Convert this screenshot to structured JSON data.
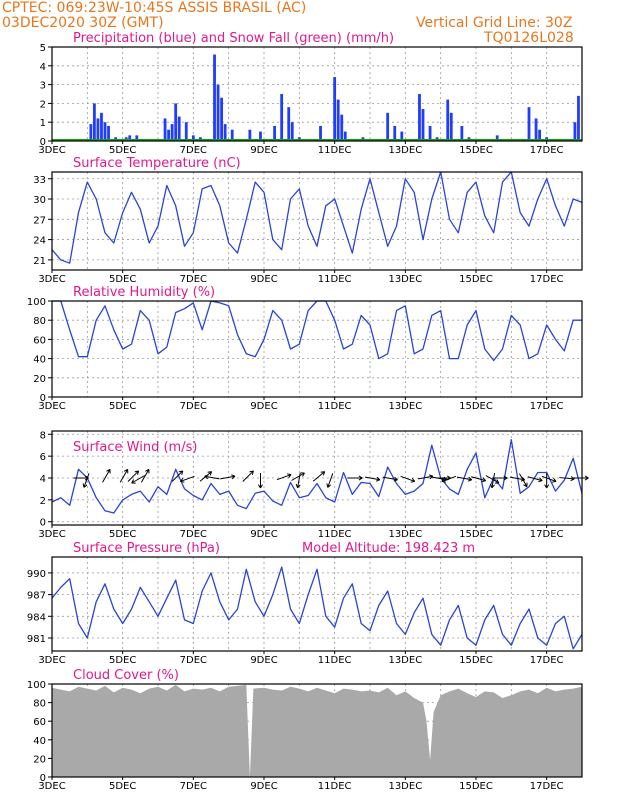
{
  "header": {
    "line1": "CPTEC:   069:23W-10:45S   ASSIS BRASIL (AC)",
    "line2_left": "03DEC2020 30Z (GMT)",
    "line2_right": "Vertical Grid Line: 30Z",
    "code": "TQ0126L028"
  },
  "colors": {
    "header": "#e8761c",
    "title": "#e0198c",
    "precip": "#1f3cff",
    "snow": "#12a012",
    "line": "#2a44d8",
    "cloud": "#a9a9a9",
    "arrow": "#000000"
  },
  "x_axis": {
    "tick_labels": [
      "3DEC",
      "5DEC",
      "7DEC",
      "9DEC",
      "11DEC",
      "13DEC",
      "15DEC",
      "17DEC"
    ],
    "start_day": 3,
    "end_day": 18
  },
  "chart_data": [
    {
      "type": "bar",
      "title": "Precipitation (blue) and Snow Fall (green) (mm/h)",
      "ylim": [
        0,
        5
      ],
      "yticks": [
        0,
        1,
        2,
        3,
        4,
        5
      ],
      "series": [
        {
          "name": "Precipitation",
          "color": "#1f3cff",
          "points": [
            [
              4.1,
              0.9
            ],
            [
              4.2,
              2.0
            ],
            [
              4.3,
              1.2
            ],
            [
              4.4,
              1.5
            ],
            [
              4.5,
              1.0
            ],
            [
              4.6,
              0.8
            ],
            [
              4.8,
              0.2
            ],
            [
              5.1,
              0.2
            ],
            [
              5.2,
              0.3
            ],
            [
              5.4,
              0.3
            ],
            [
              5.5,
              0.1
            ],
            [
              6.2,
              1.2
            ],
            [
              6.3,
              0.6
            ],
            [
              6.4,
              0.9
            ],
            [
              6.5,
              2.0
            ],
            [
              6.6,
              1.3
            ],
            [
              6.8,
              1.0
            ],
            [
              7.0,
              0.3
            ],
            [
              7.2,
              0.2
            ],
            [
              7.6,
              4.6
            ],
            [
              7.7,
              3.0
            ],
            [
              7.8,
              2.3
            ],
            [
              7.9,
              0.9
            ],
            [
              8.1,
              0.6
            ],
            [
              8.3,
              0.1
            ],
            [
              8.6,
              0.6
            ],
            [
              8.9,
              0.5
            ],
            [
              9.3,
              0.8
            ],
            [
              9.5,
              2.5
            ],
            [
              9.7,
              1.8
            ],
            [
              9.8,
              1.0
            ],
            [
              10.0,
              0.2
            ],
            [
              10.6,
              0.8
            ],
            [
              11.0,
              3.4
            ],
            [
              11.1,
              2.2
            ],
            [
              11.2,
              1.4
            ],
            [
              11.3,
              0.5
            ],
            [
              11.8,
              0.2
            ],
            [
              12.5,
              1.5
            ],
            [
              12.7,
              0.8
            ],
            [
              12.9,
              0.5
            ],
            [
              13.1,
              0.1
            ],
            [
              13.4,
              2.5
            ],
            [
              13.5,
              1.7
            ],
            [
              13.7,
              0.8
            ],
            [
              13.9,
              0.2
            ],
            [
              14.1,
              0.1
            ],
            [
              14.2,
              2.2
            ],
            [
              14.3,
              1.5
            ],
            [
              14.6,
              0.8
            ],
            [
              14.8,
              0.2
            ],
            [
              15.2,
              0.1
            ],
            [
              15.6,
              0.3
            ],
            [
              16.0,
              0.1
            ],
            [
              16.5,
              1.8
            ],
            [
              16.7,
              1.2
            ],
            [
              16.8,
              0.6
            ],
            [
              17.0,
              0.2
            ],
            [
              17.2,
              0.1
            ],
            [
              17.8,
              1.0
            ],
            [
              17.9,
              2.4
            ]
          ]
        },
        {
          "name": "Snow Fall",
          "color": "#12a012",
          "points": [
            [
              3.0,
              0.0
            ],
            [
              18.0,
              0.0
            ]
          ]
        }
      ]
    },
    {
      "type": "line",
      "title": "Surface Temperature (nC)",
      "ylim": [
        19.5,
        34
      ],
      "yticks": [
        21,
        24,
        27,
        30,
        33
      ],
      "x": [
        3.0,
        3.25,
        3.5,
        3.75,
        4.0,
        4.25,
        4.5,
        4.75,
        5.0,
        5.25,
        5.5,
        5.75,
        6.0,
        6.25,
        6.5,
        6.75,
        7.0,
        7.25,
        7.5,
        7.75,
        8.0,
        8.25,
        8.5,
        8.75,
        9.0,
        9.25,
        9.5,
        9.75,
        10.0,
        10.25,
        10.5,
        10.75,
        11.0,
        11.25,
        11.5,
        11.75,
        12.0,
        12.25,
        12.5,
        12.75,
        13.0,
        13.25,
        13.5,
        13.75,
        14.0,
        14.25,
        14.5,
        14.75,
        15.0,
        15.25,
        15.5,
        15.75,
        16.0,
        16.25,
        16.5,
        16.75,
        17.0,
        17.25,
        17.5,
        17.75,
        18.0
      ],
      "y": [
        22.5,
        21,
        20.5,
        28,
        32.5,
        30,
        25,
        23.5,
        28,
        31,
        28.5,
        23.5,
        26,
        32,
        29,
        23,
        25,
        31.5,
        32,
        29,
        23.5,
        22,
        27,
        32.5,
        31,
        24,
        22.5,
        30,
        31.5,
        26,
        23,
        29,
        30,
        26,
        22,
        28.5,
        33,
        28,
        23,
        26,
        33,
        31,
        24,
        30,
        34,
        27,
        25,
        31,
        32.5,
        27.5,
        25,
        32.5,
        34,
        28,
        26,
        30,
        33,
        29,
        26,
        30,
        29.5
      ]
    },
    {
      "type": "line",
      "title": "Relative Humidity (%)",
      "ylim": [
        0,
        100
      ],
      "yticks": [
        0,
        20,
        40,
        60,
        80,
        100
      ],
      "x": [
        3.0,
        3.25,
        3.5,
        3.75,
        4.0,
        4.25,
        4.5,
        4.75,
        5.0,
        5.25,
        5.5,
        5.75,
        6.0,
        6.25,
        6.5,
        6.75,
        7.0,
        7.25,
        7.5,
        7.75,
        8.0,
        8.25,
        8.5,
        8.75,
        9.0,
        9.25,
        9.5,
        9.75,
        10.0,
        10.25,
        10.5,
        10.75,
        11.0,
        11.25,
        11.5,
        11.75,
        12.0,
        12.25,
        12.5,
        12.75,
        13.0,
        13.25,
        13.5,
        13.75,
        14.0,
        14.25,
        14.5,
        14.75,
        15.0,
        15.25,
        15.5,
        15.75,
        16.0,
        16.25,
        16.5,
        16.75,
        17.0,
        17.25,
        17.5,
        17.75,
        18.0
      ],
      "y": [
        100,
        100,
        70,
        42,
        42,
        80,
        95,
        70,
        50,
        55,
        90,
        80,
        45,
        52,
        88,
        92,
        98,
        70,
        100,
        98,
        95,
        65,
        45,
        42,
        60,
        90,
        80,
        50,
        55,
        90,
        100,
        100,
        80,
        50,
        55,
        85,
        75,
        40,
        45,
        90,
        95,
        45,
        50,
        85,
        90,
        40,
        40,
        75,
        90,
        50,
        38,
        50,
        85,
        75,
        40,
        45,
        75,
        60,
        48,
        80,
        80
      ]
    },
    {
      "type": "line",
      "title": "Surface Wind (m/s)",
      "ylim": [
        -0.3,
        8.3
      ],
      "yticks": [
        0,
        2,
        4,
        6,
        8
      ],
      "x": [
        3.0,
        3.25,
        3.5,
        3.75,
        4.0,
        4.25,
        4.5,
        4.75,
        5.0,
        5.25,
        5.5,
        5.75,
        6.0,
        6.25,
        6.5,
        6.75,
        7.0,
        7.25,
        7.5,
        7.75,
        8.0,
        8.25,
        8.5,
        8.75,
        9.0,
        9.25,
        9.5,
        9.75,
        10.0,
        10.25,
        10.5,
        10.75,
        11.0,
        11.25,
        11.5,
        11.75,
        12.0,
        12.25,
        12.5,
        12.75,
        13.0,
        13.25,
        13.5,
        13.75,
        14.0,
        14.25,
        14.5,
        14.75,
        15.0,
        15.25,
        15.5,
        15.75,
        16.0,
        16.25,
        16.5,
        16.75,
        17.0,
        17.25,
        17.5,
        17.75,
        18.0
      ],
      "y": [
        1.8,
        2.2,
        1.5,
        4.8,
        4.0,
        2.2,
        1.0,
        0.8,
        2.0,
        2.5,
        2.8,
        1.8,
        3.2,
        2.5,
        4.8,
        3.0,
        2.4,
        2.0,
        3.5,
        2.5,
        2.8,
        1.5,
        1.2,
        2.6,
        2.8,
        1.9,
        1.5,
        3.6,
        2.2,
        2.4,
        3.5,
        2.2,
        1.8,
        4.5,
        2.5,
        3.6,
        3.5,
        2.3,
        5.0,
        3.5,
        2.5,
        2.8,
        3.5,
        7.0,
        4.0,
        3.0,
        2.5,
        4.8,
        6.3,
        2.2,
        4.0,
        3.0,
        7.5,
        2.6,
        3.2,
        4.5,
        4.5,
        2.8,
        3.8,
        5.8,
        2.6
      ]
    },
    {
      "type": "line",
      "title": "Surface Pressure (hPa)",
      "annotation": "Model Altitude: 198.423 m",
      "ylim": [
        979.2,
        992.2
      ],
      "yticks": [
        981,
        984,
        987,
        990
      ],
      "x": [
        3.0,
        3.25,
        3.5,
        3.75,
        4.0,
        4.25,
        4.5,
        4.75,
        5.0,
        5.25,
        5.5,
        5.75,
        6.0,
        6.25,
        6.5,
        6.75,
        7.0,
        7.25,
        7.5,
        7.75,
        8.0,
        8.25,
        8.5,
        8.75,
        9.0,
        9.25,
        9.5,
        9.75,
        10.0,
        10.25,
        10.5,
        10.75,
        11.0,
        11.25,
        11.5,
        11.75,
        12.0,
        12.25,
        12.5,
        12.75,
        13.0,
        13.25,
        13.5,
        13.75,
        14.0,
        14.25,
        14.5,
        14.75,
        15.0,
        15.25,
        15.5,
        15.75,
        16.0,
        16.25,
        16.5,
        16.75,
        17.0,
        17.25,
        17.5,
        17.75,
        18.0
      ],
      "y": [
        986.5,
        988,
        989.2,
        983,
        981,
        986,
        988.5,
        985,
        983,
        985,
        988,
        986,
        984,
        986.5,
        989,
        983.5,
        983,
        987.5,
        990,
        986,
        983.5,
        985,
        990.5,
        986,
        984,
        987,
        990.8,
        985,
        983,
        987,
        990.5,
        984,
        982.5,
        986.5,
        988.5,
        983,
        982,
        985.5,
        987.5,
        983,
        981.5,
        984.5,
        986.5,
        981.5,
        980,
        983.5,
        985.5,
        981,
        980,
        983.5,
        985.5,
        981.5,
        980,
        983,
        985,
        981,
        980,
        983,
        984,
        979.5,
        981.5
      ]
    },
    {
      "type": "area",
      "title": "Cloud Cover (%)",
      "ylim": [
        0,
        100
      ],
      "yticks": [
        0,
        20,
        40,
        60,
        80,
        100
      ],
      "x": [
        3.0,
        3.25,
        3.5,
        3.75,
        4.0,
        4.25,
        4.5,
        4.75,
        5.0,
        5.25,
        5.5,
        5.75,
        6.0,
        6.25,
        6.5,
        6.75,
        7.0,
        7.25,
        7.5,
        7.75,
        8.0,
        8.25,
        8.5,
        8.6,
        8.7,
        9.0,
        9.25,
        9.5,
        9.75,
        10.0,
        10.25,
        10.5,
        10.75,
        11.0,
        11.25,
        11.5,
        11.75,
        12.0,
        12.25,
        12.5,
        12.75,
        13.0,
        13.25,
        13.5,
        13.6,
        13.7,
        13.8,
        14.0,
        14.25,
        14.5,
        14.75,
        15.0,
        15.25,
        15.5,
        15.75,
        16.0,
        16.25,
        16.5,
        16.75,
        17.0,
        17.25,
        17.5,
        17.75,
        18.0
      ],
      "y": [
        96,
        94,
        92,
        97,
        95,
        93,
        98,
        91,
        96,
        94,
        90,
        95,
        97,
        93,
        99,
        92,
        95,
        94,
        96,
        92,
        97,
        98,
        99,
        0,
        95,
        96,
        94,
        93,
        97,
        95,
        92,
        96,
        93,
        90,
        95,
        94,
        92,
        93,
        91,
        96,
        88,
        92,
        85,
        80,
        60,
        18,
        70,
        88,
        92,
        95,
        90,
        86,
        92,
        91,
        85,
        88,
        92,
        94,
        90,
        96,
        92,
        94,
        95,
        97
      ]
    }
  ],
  "wind_arrows": {
    "note": "direction of arrows (degrees toward, 0=east, counterclockwise)",
    "points": [
      [
        3.75,
        0
      ],
      [
        4.0,
        250
      ],
      [
        4.5,
        60
      ],
      [
        5.0,
        60
      ],
      [
        5.25,
        45
      ],
      [
        5.6,
        60
      ],
      [
        5.5,
        210
      ],
      [
        6.5,
        45
      ],
      [
        6.9,
        200
      ],
      [
        7.3,
        40
      ],
      [
        7.6,
        170
      ],
      [
        7.9,
        10
      ],
      [
        8.5,
        45
      ],
      [
        8.9,
        270
      ],
      [
        9.5,
        20
      ],
      [
        9.9,
        30
      ],
      [
        10.0,
        260
      ],
      [
        10.5,
        40
      ],
      [
        10.9,
        250
      ],
      [
        11.5,
        0
      ],
      [
        12.0,
        350
      ],
      [
        12.5,
        350
      ],
      [
        13.0,
        340
      ],
      [
        13.5,
        10
      ],
      [
        13.9,
        350
      ],
      [
        14.0,
        0
      ],
      [
        14.6,
        350
      ],
      [
        15.0,
        345
      ],
      [
        15.4,
        330
      ],
      [
        15.6,
        0
      ],
      [
        16.1,
        350
      ],
      [
        16.6,
        345
      ],
      [
        17.0,
        340
      ],
      [
        17.5,
        355
      ],
      [
        17.9,
        0
      ],
      [
        15.5,
        260
      ],
      [
        16.3,
        300
      ],
      [
        17.0,
        270
      ],
      [
        14.3,
        200
      ]
    ]
  }
}
